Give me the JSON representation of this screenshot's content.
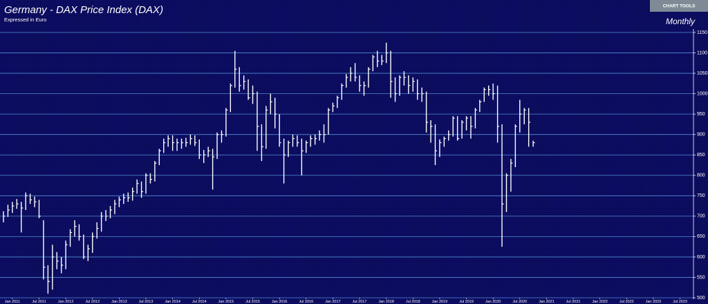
{
  "chart_data": {
    "type": "ohlc",
    "title": "Germany - DAX Price Index (DAX)",
    "subtitle": "Expressed in Euro",
    "period": "Monthly",
    "button": "CHART TOOLS",
    "color": "#ffffff",
    "grid": true,
    "grid_color": "#4f8fd6",
    "x": [
      "2010-11",
      "2010-12",
      "2011-01",
      "2011-02",
      "2011-03",
      "2011-04",
      "2011-05",
      "2011-06",
      "2011-07",
      "2011-08",
      "2011-09",
      "2011-10",
      "2011-11",
      "2011-12",
      "2012-01",
      "2012-02",
      "2012-03",
      "2012-04",
      "2012-05",
      "2012-06",
      "2012-07",
      "2012-08",
      "2012-09",
      "2012-10",
      "2012-11",
      "2012-12",
      "2013-01",
      "2013-02",
      "2013-03",
      "2013-04",
      "2013-05",
      "2013-06",
      "2013-07",
      "2013-08",
      "2013-09",
      "2013-10",
      "2013-11",
      "2013-12",
      "2014-01",
      "2014-02",
      "2014-03",
      "2014-04",
      "2014-05",
      "2014-06",
      "2014-07",
      "2014-08",
      "2014-09",
      "2014-10",
      "2014-11",
      "2014-12",
      "2015-01",
      "2015-02",
      "2015-03",
      "2015-04",
      "2015-05",
      "2015-06",
      "2015-07",
      "2015-08",
      "2015-09",
      "2015-10",
      "2015-11",
      "2015-12",
      "2016-01",
      "2016-02",
      "2016-03",
      "2016-04",
      "2016-05",
      "2016-06",
      "2016-07",
      "2016-08",
      "2016-09",
      "2016-10",
      "2016-11",
      "2016-12",
      "2017-01",
      "2017-02",
      "2017-03",
      "2017-04",
      "2017-05",
      "2017-06",
      "2017-07",
      "2017-08",
      "2017-09",
      "2017-10",
      "2017-11",
      "2017-12",
      "2018-01",
      "2018-02",
      "2018-03",
      "2018-04",
      "2018-05",
      "2018-06",
      "2018-07",
      "2018-08",
      "2018-09",
      "2018-10",
      "2018-11",
      "2018-12",
      "2019-01",
      "2019-02",
      "2019-03",
      "2019-04",
      "2019-05",
      "2019-06",
      "2019-07",
      "2019-08",
      "2019-09",
      "2019-10",
      "2019-11",
      "2019-12",
      "2020-01",
      "2020-02",
      "2020-03",
      "2020-04",
      "2020-05",
      "2020-06",
      "2020-07",
      "2020-08",
      "2020-09",
      "2020-10"
    ],
    "high": [
      712,
      728,
      735,
      742,
      735,
      758,
      755,
      748,
      740,
      690,
      580,
      630,
      612,
      600,
      640,
      668,
      690,
      680,
      655,
      630,
      660,
      685,
      710,
      715,
      725,
      740,
      748,
      755,
      758,
      770,
      790,
      785,
      805,
      805,
      835,
      865,
      890,
      898,
      898,
      890,
      890,
      892,
      900,
      898,
      888,
      862,
      870,
      865,
      905,
      910,
      965,
      1025,
      1105,
      1065,
      1045,
      1035,
      1020,
      1005,
      925,
      970,
      1000,
      990,
      950,
      890,
      885,
      900,
      898,
      890,
      885,
      898,
      900,
      910,
      925,
      965,
      978,
      995,
      1025,
      1048,
      1065,
      1075,
      1045,
      1030,
      1065,
      1095,
      1105,
      1095,
      1125,
      1105,
      1040,
      1045,
      1055,
      1045,
      1040,
      1035,
      1015,
      1005,
      935,
      925,
      888,
      895,
      910,
      945,
      945,
      935,
      945,
      945,
      965,
      985,
      1015,
      1020,
      1025,
      1020,
      925,
      805,
      840,
      925,
      985,
      965,
      965,
      885
    ],
    "low": [
      685,
      698,
      708,
      718,
      660,
      715,
      730,
      722,
      695,
      545,
      510,
      520,
      570,
      560,
      570,
      625,
      650,
      640,
      595,
      590,
      610,
      645,
      662,
      688,
      695,
      705,
      722,
      730,
      735,
      738,
      755,
      745,
      755,
      780,
      785,
      825,
      855,
      870,
      860,
      860,
      865,
      870,
      875,
      872,
      840,
      830,
      845,
      765,
      840,
      880,
      895,
      955,
      1015,
      1005,
      1010,
      985,
      975,
      860,
      835,
      865,
      950,
      915,
      870,
      780,
      845,
      870,
      870,
      800,
      855,
      870,
      875,
      885,
      880,
      900,
      955,
      965,
      985,
      1015,
      1030,
      1030,
      1005,
      995,
      1015,
      1055,
      1065,
      1070,
      1075,
      990,
      980,
      995,
      1020,
      1000,
      1005,
      985,
      980,
      905,
      880,
      825,
      845,
      870,
      885,
      895,
      885,
      890,
      910,
      890,
      915,
      955,
      980,
      995,
      985,
      880,
      625,
      710,
      760,
      820,
      905,
      925,
      870,
      870
    ],
    "close": [
      700,
      715,
      725,
      730,
      720,
      750,
      740,
      735,
      700,
      575,
      540,
      600,
      590,
      580,
      630,
      660,
      675,
      650,
      600,
      620,
      650,
      670,
      700,
      700,
      715,
      730,
      740,
      745,
      745,
      760,
      780,
      760,
      800,
      790,
      830,
      860,
      880,
      890,
      880,
      880,
      880,
      880,
      890,
      880,
      850,
      850,
      860,
      845,
      900,
      900,
      960,
      1020,
      1060,
      1020,
      1030,
      990,
      1000,
      920,
      870,
      960,
      980,
      950,
      880,
      850,
      880,
      890,
      880,
      860,
      880,
      890,
      890,
      900,
      900,
      960,
      970,
      990,
      1020,
      1040,
      1050,
      1040,
      1020,
      1020,
      1060,
      1090,
      1080,
      1080,
      1100,
      1030,
      1000,
      1040,
      1040,
      1020,
      1030,
      1000,
      1000,
      930,
      920,
      860,
      880,
      890,
      900,
      940,
      890,
      930,
      940,
      920,
      960,
      980,
      1010,
      1010,
      1000,
      920,
      730,
      800,
      830,
      920,
      950,
      960,
      930,
      880
    ],
    "xlim": [
      "2010-11",
      "2023-08"
    ],
    "xticks": [
      {
        "value": "2011-01",
        "label": "Jan 2011"
      },
      {
        "value": "2011-07",
        "label": "Jul 2011"
      },
      {
        "value": "2012-01",
        "label": "Jan 2012"
      },
      {
        "value": "2012-07",
        "label": "Jul 2012"
      },
      {
        "value": "2013-01",
        "label": "Jan 2013"
      },
      {
        "value": "2013-07",
        "label": "Jul 2013"
      },
      {
        "value": "2014-01",
        "label": "Jan 2014"
      },
      {
        "value": "2014-07",
        "label": "Jul 2014"
      },
      {
        "value": "2015-01",
        "label": "Jan 2015"
      },
      {
        "value": "2015-07",
        "label": "Jul 2015"
      },
      {
        "value": "2016-01",
        "label": "Jan 2016"
      },
      {
        "value": "2016-07",
        "label": "Jul 2016"
      },
      {
        "value": "2017-01",
        "label": "Jan 2017"
      },
      {
        "value": "2017-07",
        "label": "Jul 2017"
      },
      {
        "value": "2018-01",
        "label": "Jan 2018"
      },
      {
        "value": "2018-07",
        "label": "Jul 2018"
      },
      {
        "value": "2019-01",
        "label": "Jan 2019"
      },
      {
        "value": "2019-07",
        "label": "Jul 2019"
      },
      {
        "value": "2020-01",
        "label": "Jan 2020"
      },
      {
        "value": "2020-07",
        "label": "Jul 2020"
      },
      {
        "value": "2021-01",
        "label": "Jan 2021"
      },
      {
        "value": "2021-07",
        "label": "Jul 2021"
      },
      {
        "value": "2022-01",
        "label": "Jan 2022"
      },
      {
        "value": "2022-07",
        "label": "Jul 2022"
      },
      {
        "value": "2023-01",
        "label": "Jan 2023"
      },
      {
        "value": "2023-07",
        "label": "Jul 2023"
      }
    ],
    "ylim": [
      500,
      1150
    ],
    "yticks": [
      500,
      550,
      600,
      650,
      700,
      750,
      800,
      850,
      900,
      950,
      1000,
      1050,
      1100,
      1150
    ]
  }
}
